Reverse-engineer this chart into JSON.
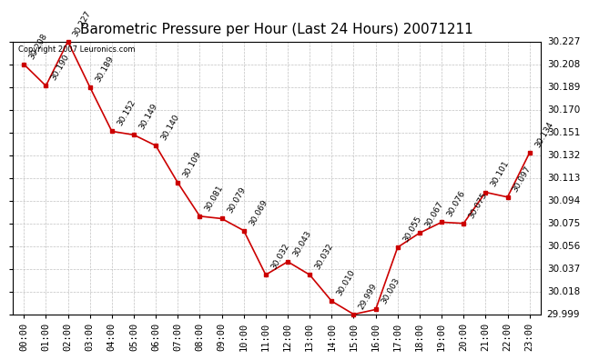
{
  "title": "Barometric Pressure per Hour (Last 24 Hours) 20071211",
  "copyright": "Copyright 2007 Leuronics.com",
  "hours": [
    "00:00",
    "01:00",
    "02:00",
    "03:00",
    "04:00",
    "05:00",
    "06:00",
    "07:00",
    "08:00",
    "09:00",
    "10:00",
    "11:00",
    "12:00",
    "13:00",
    "14:00",
    "15:00",
    "16:00",
    "17:00",
    "18:00",
    "19:00",
    "20:00",
    "21:00",
    "22:00",
    "23:00"
  ],
  "values": [
    30.208,
    30.19,
    30.227,
    30.189,
    30.152,
    30.149,
    30.14,
    30.109,
    30.081,
    30.079,
    30.069,
    30.032,
    30.043,
    30.032,
    30.01,
    29.999,
    30.003,
    30.055,
    30.067,
    30.076,
    30.075,
    30.101,
    30.097,
    30.134
  ],
  "labels": [
    "30.208",
    "30.190",
    "30.227",
    "30.189",
    "30.152",
    "30.149",
    "30.140",
    "30.109",
    "30.081",
    "30.079",
    "30.069",
    "30.032",
    "30.043",
    "30.032",
    "30.010",
    "29.999",
    "30.003",
    "30.055",
    "30.067",
    "30.076",
    "30.075",
    "30.101",
    "30.097",
    "30.134"
  ],
  "ylim_min": 29.999,
  "ylim_max": 30.227,
  "yticks": [
    30.227,
    30.208,
    30.189,
    30.17,
    30.151,
    30.132,
    30.113,
    30.094,
    30.075,
    30.056,
    30.037,
    30.018,
    29.999
  ],
  "line_color": "#cc0000",
  "marker_color": "#cc0000",
  "background_color": "#ffffff",
  "grid_color": "#bbbbbb",
  "title_fontsize": 11,
  "label_fontsize": 6.5,
  "tick_fontsize": 7.5,
  "copyright_fontsize": 6
}
